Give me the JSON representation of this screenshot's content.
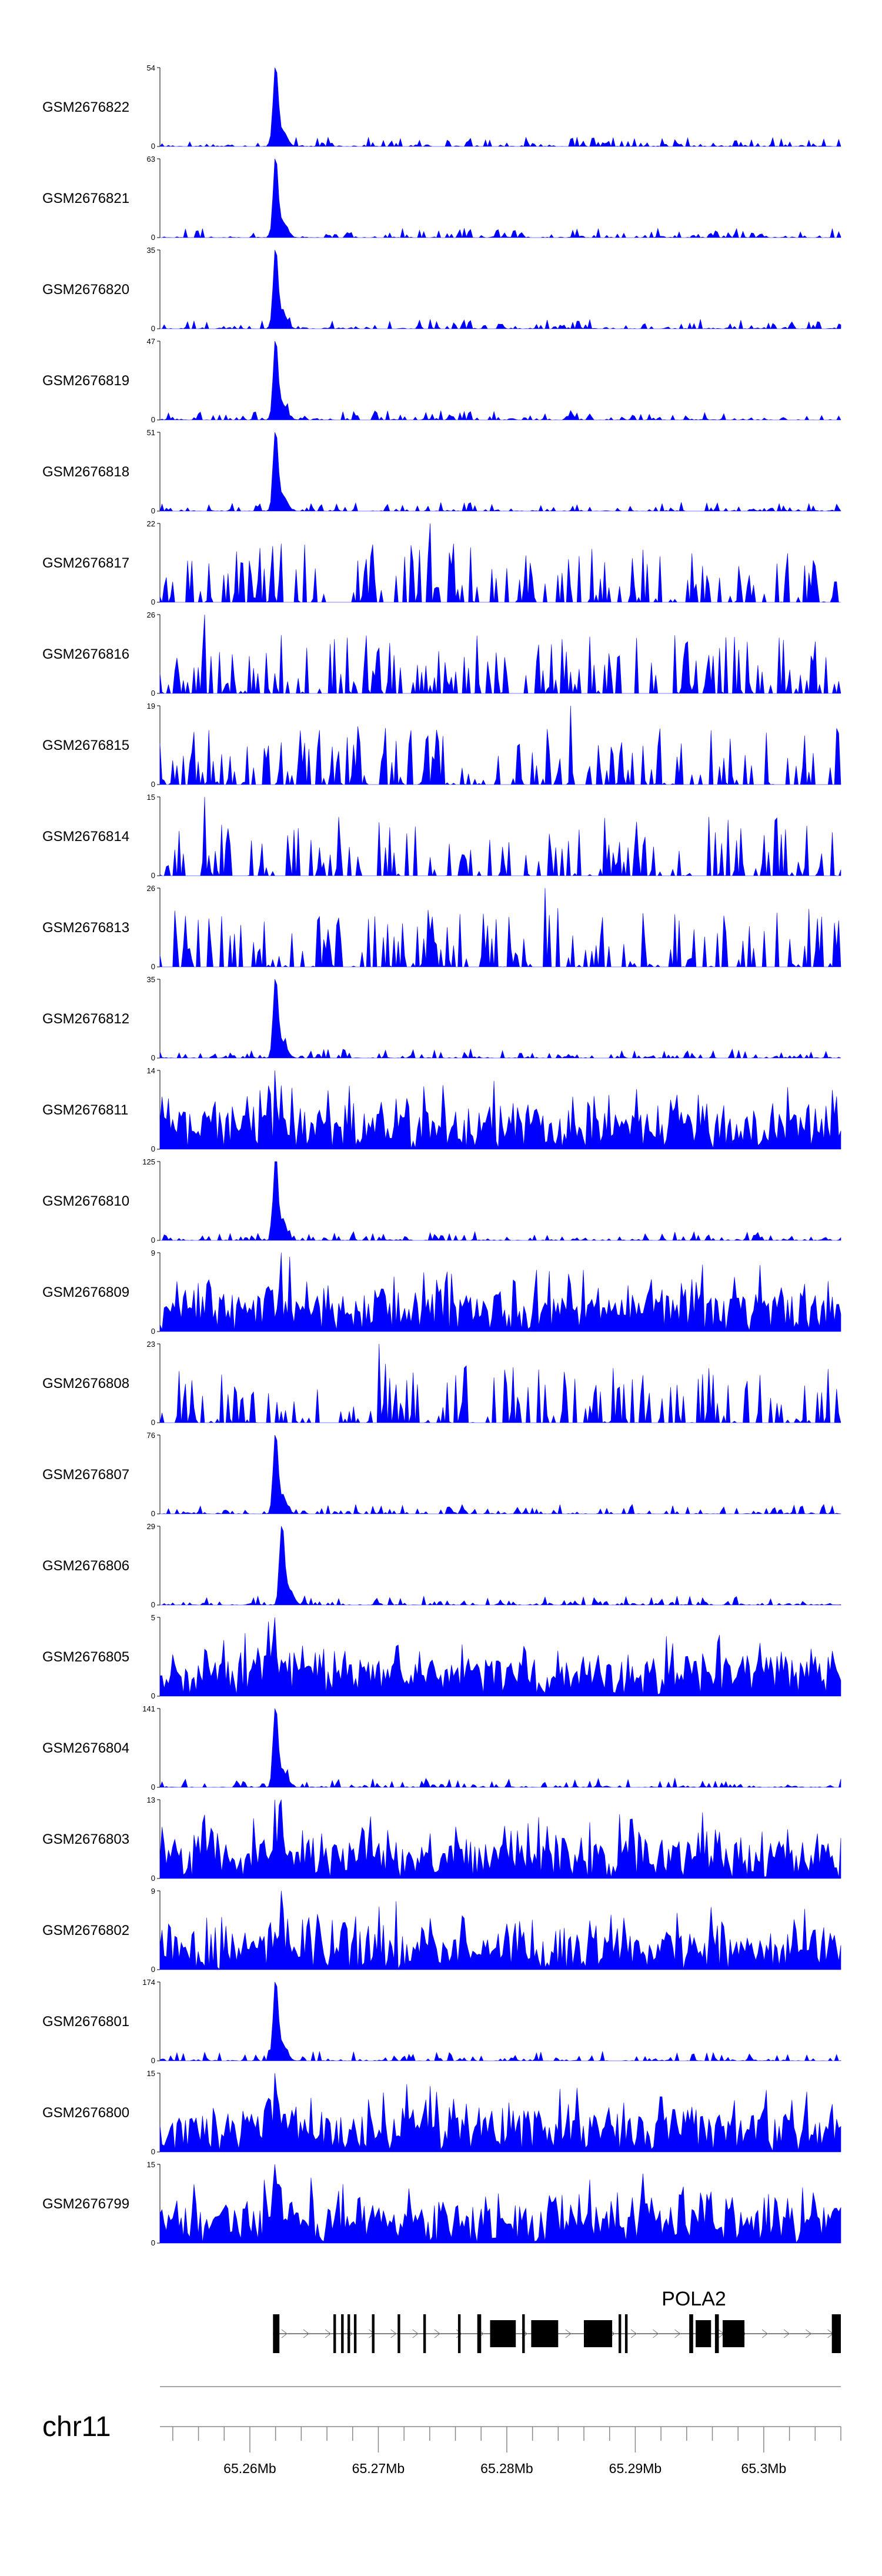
{
  "chart_data": {
    "type": "area",
    "title": "",
    "xlabel": "",
    "ylabel": "",
    "chromosome": "chr11",
    "gene": "POLA2",
    "xlim": [
      65253000,
      65306000
    ],
    "x_ticks": [
      {
        "value": 65260000,
        "label": "65.26Mb"
      },
      {
        "value": 65270000,
        "label": "65.27Mb"
      },
      {
        "value": 65280000,
        "label": "65.28Mb"
      },
      {
        "value": 65290000,
        "label": "65.29Mb"
      },
      {
        "value": 65300000,
        "label": "65.3Mb"
      }
    ],
    "gene_model": {
      "start": 65261800,
      "end": 65306000,
      "exons": [
        [
          65261800,
          65262300
        ],
        [
          65266500,
          65266700
        ],
        [
          65267100,
          65267300
        ],
        [
          65267600,
          65267800
        ],
        [
          65268100,
          65268300
        ],
        [
          65269500,
          65269700
        ],
        [
          65271500,
          65271700
        ],
        [
          65273500,
          65273700
        ],
        [
          65276200,
          65276400
        ],
        [
          65277700,
          65278000
        ],
        [
          65278700,
          65280700
        ],
        [
          65281200,
          65281400
        ],
        [
          65281900,
          65284000
        ],
        [
          65286000,
          65288200
        ],
        [
          65288700,
          65288900
        ],
        [
          65289200,
          65289400
        ],
        [
          65294200,
          65294500
        ],
        [
          65294700,
          65295900
        ],
        [
          65296200,
          65296500
        ],
        [
          65296800,
          65298500
        ],
        [
          65305300,
          65306000
        ]
      ]
    },
    "series": [
      {
        "name": "GSM2676822",
        "ymax": 54,
        "pattern": "peak",
        "peak_x": 65262000,
        "peak_y": 54
      },
      {
        "name": "GSM2676821",
        "ymax": 63,
        "pattern": "peak",
        "peak_x": 65262000,
        "peak_y": 63
      },
      {
        "name": "GSM2676820",
        "ymax": 35,
        "pattern": "peak",
        "peak_x": 65262000,
        "peak_y": 35
      },
      {
        "name": "GSM2676819",
        "ymax": 47,
        "pattern": "peak",
        "peak_x": 65262000,
        "peak_y": 47
      },
      {
        "name": "GSM2676818",
        "ymax": 51,
        "pattern": "peak",
        "peak_x": 65262000,
        "peak_y": 51
      },
      {
        "name": "GSM2676817",
        "ymax": 22,
        "pattern": "sparse",
        "peak_x": 65274000,
        "peak_y": 22
      },
      {
        "name": "GSM2676816",
        "ymax": 26,
        "pattern": "sparse",
        "peak_x": 65256500,
        "peak_y": 26
      },
      {
        "name": "GSM2676815",
        "ymax": 19,
        "pattern": "sparse",
        "peak_x": 65285000,
        "peak_y": 19
      },
      {
        "name": "GSM2676814",
        "ymax": 15,
        "pattern": "sparse",
        "peak_x": 65256500,
        "peak_y": 15
      },
      {
        "name": "GSM2676813",
        "ymax": 26,
        "pattern": "sparse",
        "peak_x": 65283000,
        "peak_y": 26
      },
      {
        "name": "GSM2676812",
        "ymax": 35,
        "pattern": "peak",
        "peak_x": 65262000,
        "peak_y": 35
      },
      {
        "name": "GSM2676811",
        "ymax": 14,
        "pattern": "dense",
        "peak_x": 65262000,
        "peak_y": 14
      },
      {
        "name": "GSM2676810",
        "ymax": 125,
        "pattern": "peak",
        "peak_x": 65262000,
        "peak_y": 125
      },
      {
        "name": "GSM2676809",
        "ymax": 9,
        "pattern": "dense",
        "peak_x": 65262500,
        "peak_y": 9
      },
      {
        "name": "GSM2676808",
        "ymax": 23,
        "pattern": "sparse",
        "peak_x": 65270000,
        "peak_y": 23
      },
      {
        "name": "GSM2676807",
        "ymax": 76,
        "pattern": "peak",
        "peak_x": 65262000,
        "peak_y": 76
      },
      {
        "name": "GSM2676806",
        "ymax": 29,
        "pattern": "peak",
        "peak_x": 65262500,
        "peak_y": 29
      },
      {
        "name": "GSM2676805",
        "ymax": 5,
        "pattern": "dense",
        "peak_x": 65262000,
        "peak_y": 5
      },
      {
        "name": "GSM2676804",
        "ymax": 141,
        "pattern": "peak",
        "peak_x": 65262000,
        "peak_y": 141
      },
      {
        "name": "GSM2676803",
        "ymax": 13,
        "pattern": "dense",
        "peak_x": 65262000,
        "peak_y": 13
      },
      {
        "name": "GSM2676802",
        "ymax": 9,
        "pattern": "dense",
        "peak_x": 65262500,
        "peak_y": 9
      },
      {
        "name": "GSM2676801",
        "ymax": 174,
        "pattern": "peak",
        "peak_x": 65262000,
        "peak_y": 174
      },
      {
        "name": "GSM2676800",
        "ymax": 15,
        "pattern": "dense",
        "peak_x": 65262000,
        "peak_y": 15
      },
      {
        "name": "GSM2676799",
        "ymax": 15,
        "pattern": "dense",
        "peak_x": 65262000,
        "peak_y": 15
      }
    ]
  }
}
